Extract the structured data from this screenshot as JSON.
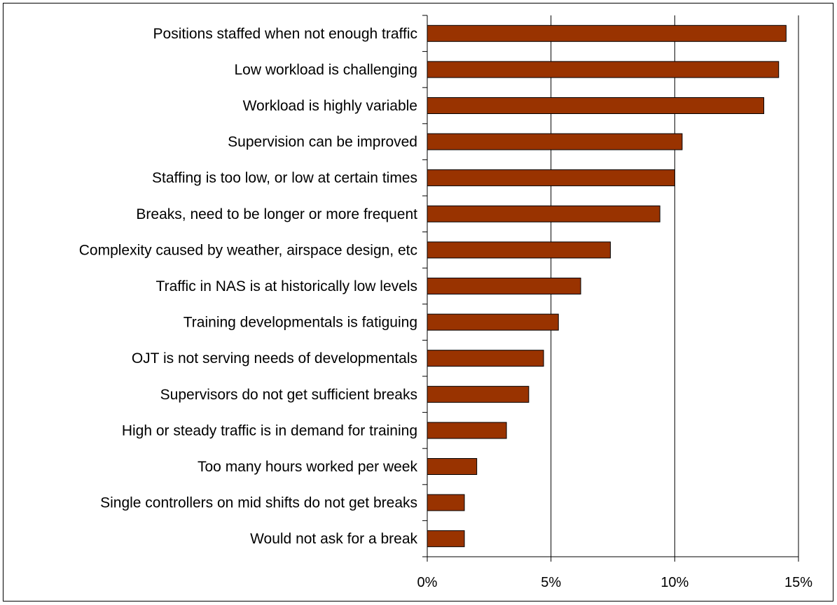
{
  "chart_data": {
    "type": "bar",
    "orientation": "horizontal",
    "categories": [
      "Positions staffed when not enough traffic",
      "Low workload is challenging",
      "Workload is highly variable",
      "Supervision can be improved",
      "Staffing is too low, or low at certain times",
      "Breaks, need to be longer or more frequent",
      "Complexity caused by weather, airspace design, etc",
      "Traffic in NAS is at historically low levels",
      "Training developmentals is fatiguing",
      "OJT is not serving needs of developmentals",
      "Supervisors do not get sufficient breaks",
      "High or steady traffic is in demand for training",
      "Too many hours worked per week",
      "Single controllers on mid shifts do not get breaks",
      "Would not ask for a break"
    ],
    "values": [
      14.5,
      14.2,
      13.6,
      10.3,
      10.0,
      9.4,
      7.4,
      6.2,
      5.3,
      4.7,
      4.1,
      3.2,
      2.0,
      1.5,
      1.5
    ],
    "xlim": [
      0,
      15
    ],
    "xticks": [
      "0%",
      "5%",
      "10%",
      "15%"
    ],
    "xtick_values": [
      0,
      5,
      10,
      15
    ],
    "title": "",
    "xlabel": "",
    "ylabel": "",
    "grid": "vertical gridlines at major ticks",
    "legend": "none",
    "bar_color": "#993300"
  }
}
